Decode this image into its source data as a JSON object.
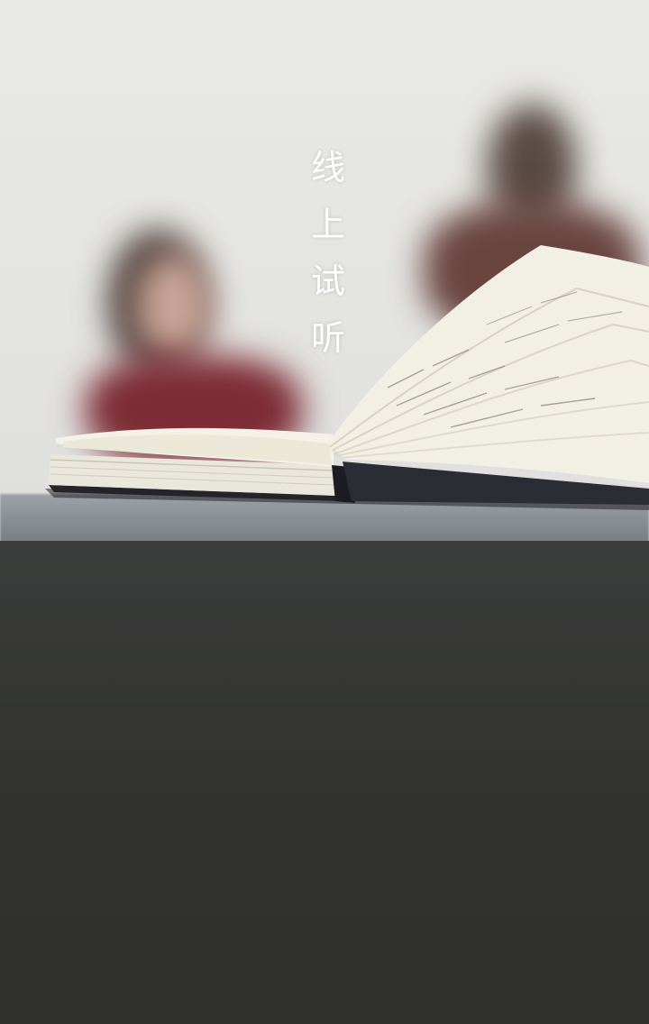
{
  "banner": {
    "title_chars": [
      "线",
      "上",
      "试",
      "听"
    ]
  },
  "background": {
    "scene": "blurred-classroom-photo",
    "icon": "open-book-illustration"
  }
}
